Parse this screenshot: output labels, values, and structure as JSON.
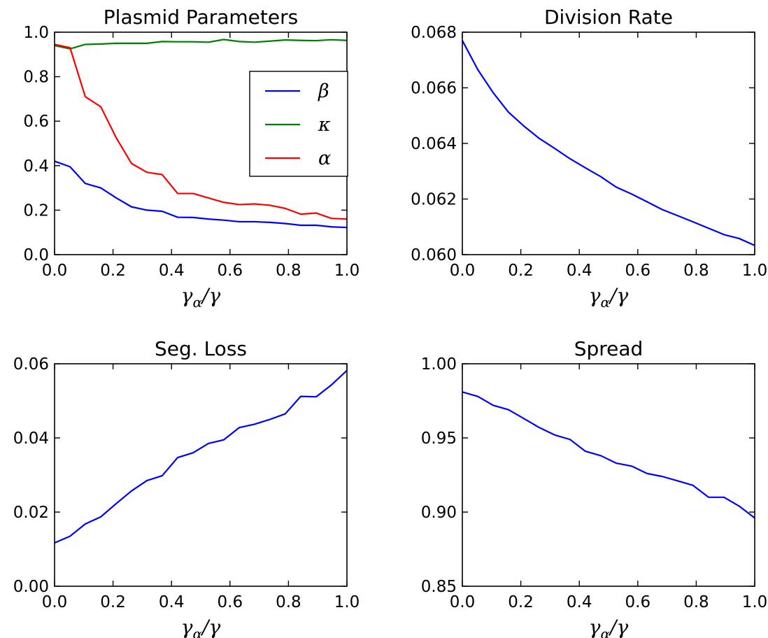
{
  "figure": {
    "xlabel_main": "γ",
    "xlabel_sub": "α",
    "xlabel_tail": "/γ"
  },
  "chart_data": [
    {
      "type": "line",
      "title": "Plasmid Parameters",
      "xlabel": "γα/γ",
      "ylabel": "",
      "xlim": [
        0.0,
        1.0
      ],
      "ylim": [
        0.0,
        1.0
      ],
      "xticks": [
        "0.0",
        "0.2",
        "0.4",
        "0.6",
        "0.8",
        "1.0"
      ],
      "yticks": [
        "0.0",
        "0.2",
        "0.4",
        "0.6",
        "0.8",
        "1.0"
      ],
      "legend_position": "right",
      "grid": false,
      "x": [
        0.0,
        0.053,
        0.105,
        0.158,
        0.211,
        0.263,
        0.316,
        0.368,
        0.421,
        0.474,
        0.526,
        0.579,
        0.632,
        0.684,
        0.737,
        0.789,
        0.842,
        0.895,
        0.947,
        1.0
      ],
      "series": [
        {
          "name": "β",
          "color": "#0000ff",
          "values": [
            0.42,
            0.395,
            0.32,
            0.3,
            0.255,
            0.215,
            0.2,
            0.195,
            0.168,
            0.167,
            0.16,
            0.155,
            0.148,
            0.148,
            0.145,
            0.14,
            0.132,
            0.132,
            0.125,
            0.122
          ]
        },
        {
          "name": "κ",
          "color": "#008000",
          "values": [
            0.94,
            0.925,
            0.945,
            0.947,
            0.95,
            0.95,
            0.95,
            0.958,
            0.957,
            0.957,
            0.955,
            0.967,
            0.958,
            0.955,
            0.96,
            0.965,
            0.963,
            0.962,
            0.966,
            0.963
          ]
        },
        {
          "name": "α",
          "color": "#ff0000",
          "values": [
            0.945,
            0.93,
            0.71,
            0.665,
            0.525,
            0.41,
            0.37,
            0.36,
            0.275,
            0.275,
            0.255,
            0.235,
            0.225,
            0.228,
            0.222,
            0.208,
            0.182,
            0.187,
            0.163,
            0.16
          ]
        }
      ]
    },
    {
      "type": "line",
      "title": "Division Rate",
      "xlabel": "γα/γ",
      "ylabel": "",
      "xlim": [
        0.0,
        1.0
      ],
      "ylim": [
        0.06,
        0.068
      ],
      "xticks": [
        "0.0",
        "0.2",
        "0.4",
        "0.6",
        "0.8",
        "1.0"
      ],
      "yticks": [
        "0.060",
        "0.062",
        "0.064",
        "0.066",
        "0.068"
      ],
      "grid": false,
      "x": [
        0.0,
        0.053,
        0.105,
        0.158,
        0.211,
        0.263,
        0.316,
        0.368,
        0.421,
        0.474,
        0.526,
        0.579,
        0.632,
        0.684,
        0.737,
        0.789,
        0.842,
        0.895,
        0.947,
        1.0
      ],
      "series": [
        {
          "color": "#0000ff",
          "values": [
            0.0677,
            0.06665,
            0.06583,
            0.06512,
            0.06462,
            0.06418,
            0.06382,
            0.06345,
            0.06312,
            0.0628,
            0.06243,
            0.06218,
            0.0619,
            0.06162,
            0.0614,
            0.06118,
            0.06095,
            0.06072,
            0.06058,
            0.06033
          ]
        }
      ]
    },
    {
      "type": "line",
      "title": "Seg. Loss",
      "xlabel": "γα/γ",
      "ylabel": "",
      "xlim": [
        0.0,
        1.0
      ],
      "ylim": [
        0.0,
        0.06
      ],
      "xticks": [
        "0.0",
        "0.2",
        "0.4",
        "0.6",
        "0.8",
        "1.0"
      ],
      "yticks": [
        "0.00",
        "0.02",
        "0.04",
        "0.06"
      ],
      "grid": false,
      "x": [
        0.0,
        0.053,
        0.105,
        0.158,
        0.211,
        0.263,
        0.316,
        0.368,
        0.421,
        0.474,
        0.526,
        0.579,
        0.632,
        0.684,
        0.737,
        0.789,
        0.842,
        0.895,
        0.947,
        1.0
      ],
      "series": [
        {
          "color": "#0000ff",
          "values": [
            0.0117,
            0.0135,
            0.0168,
            0.0187,
            0.0223,
            0.0257,
            0.0285,
            0.0298,
            0.0347,
            0.036,
            0.0385,
            0.0395,
            0.0428,
            0.0437,
            0.045,
            0.0465,
            0.0512,
            0.0511,
            0.0543,
            0.0582
          ]
        }
      ]
    },
    {
      "type": "line",
      "title": "Spread",
      "xlabel": "γα/γ",
      "ylabel": "",
      "xlim": [
        0.0,
        1.0
      ],
      "ylim": [
        0.85,
        1.0
      ],
      "xticks": [
        "0.0",
        "0.2",
        "0.4",
        "0.6",
        "0.8",
        "1.0"
      ],
      "yticks": [
        "0.85",
        "0.90",
        "0.95",
        "1.00"
      ],
      "grid": false,
      "x": [
        0.0,
        0.053,
        0.105,
        0.158,
        0.211,
        0.263,
        0.316,
        0.368,
        0.421,
        0.474,
        0.526,
        0.579,
        0.632,
        0.684,
        0.737,
        0.789,
        0.842,
        0.895,
        0.947,
        1.0
      ],
      "series": [
        {
          "color": "#0000ff",
          "values": [
            0.981,
            0.978,
            0.972,
            0.969,
            0.963,
            0.957,
            0.952,
            0.949,
            0.941,
            0.938,
            0.933,
            0.931,
            0.926,
            0.924,
            0.921,
            0.918,
            0.91,
            0.91,
            0.904,
            0.896
          ]
        }
      ]
    }
  ]
}
